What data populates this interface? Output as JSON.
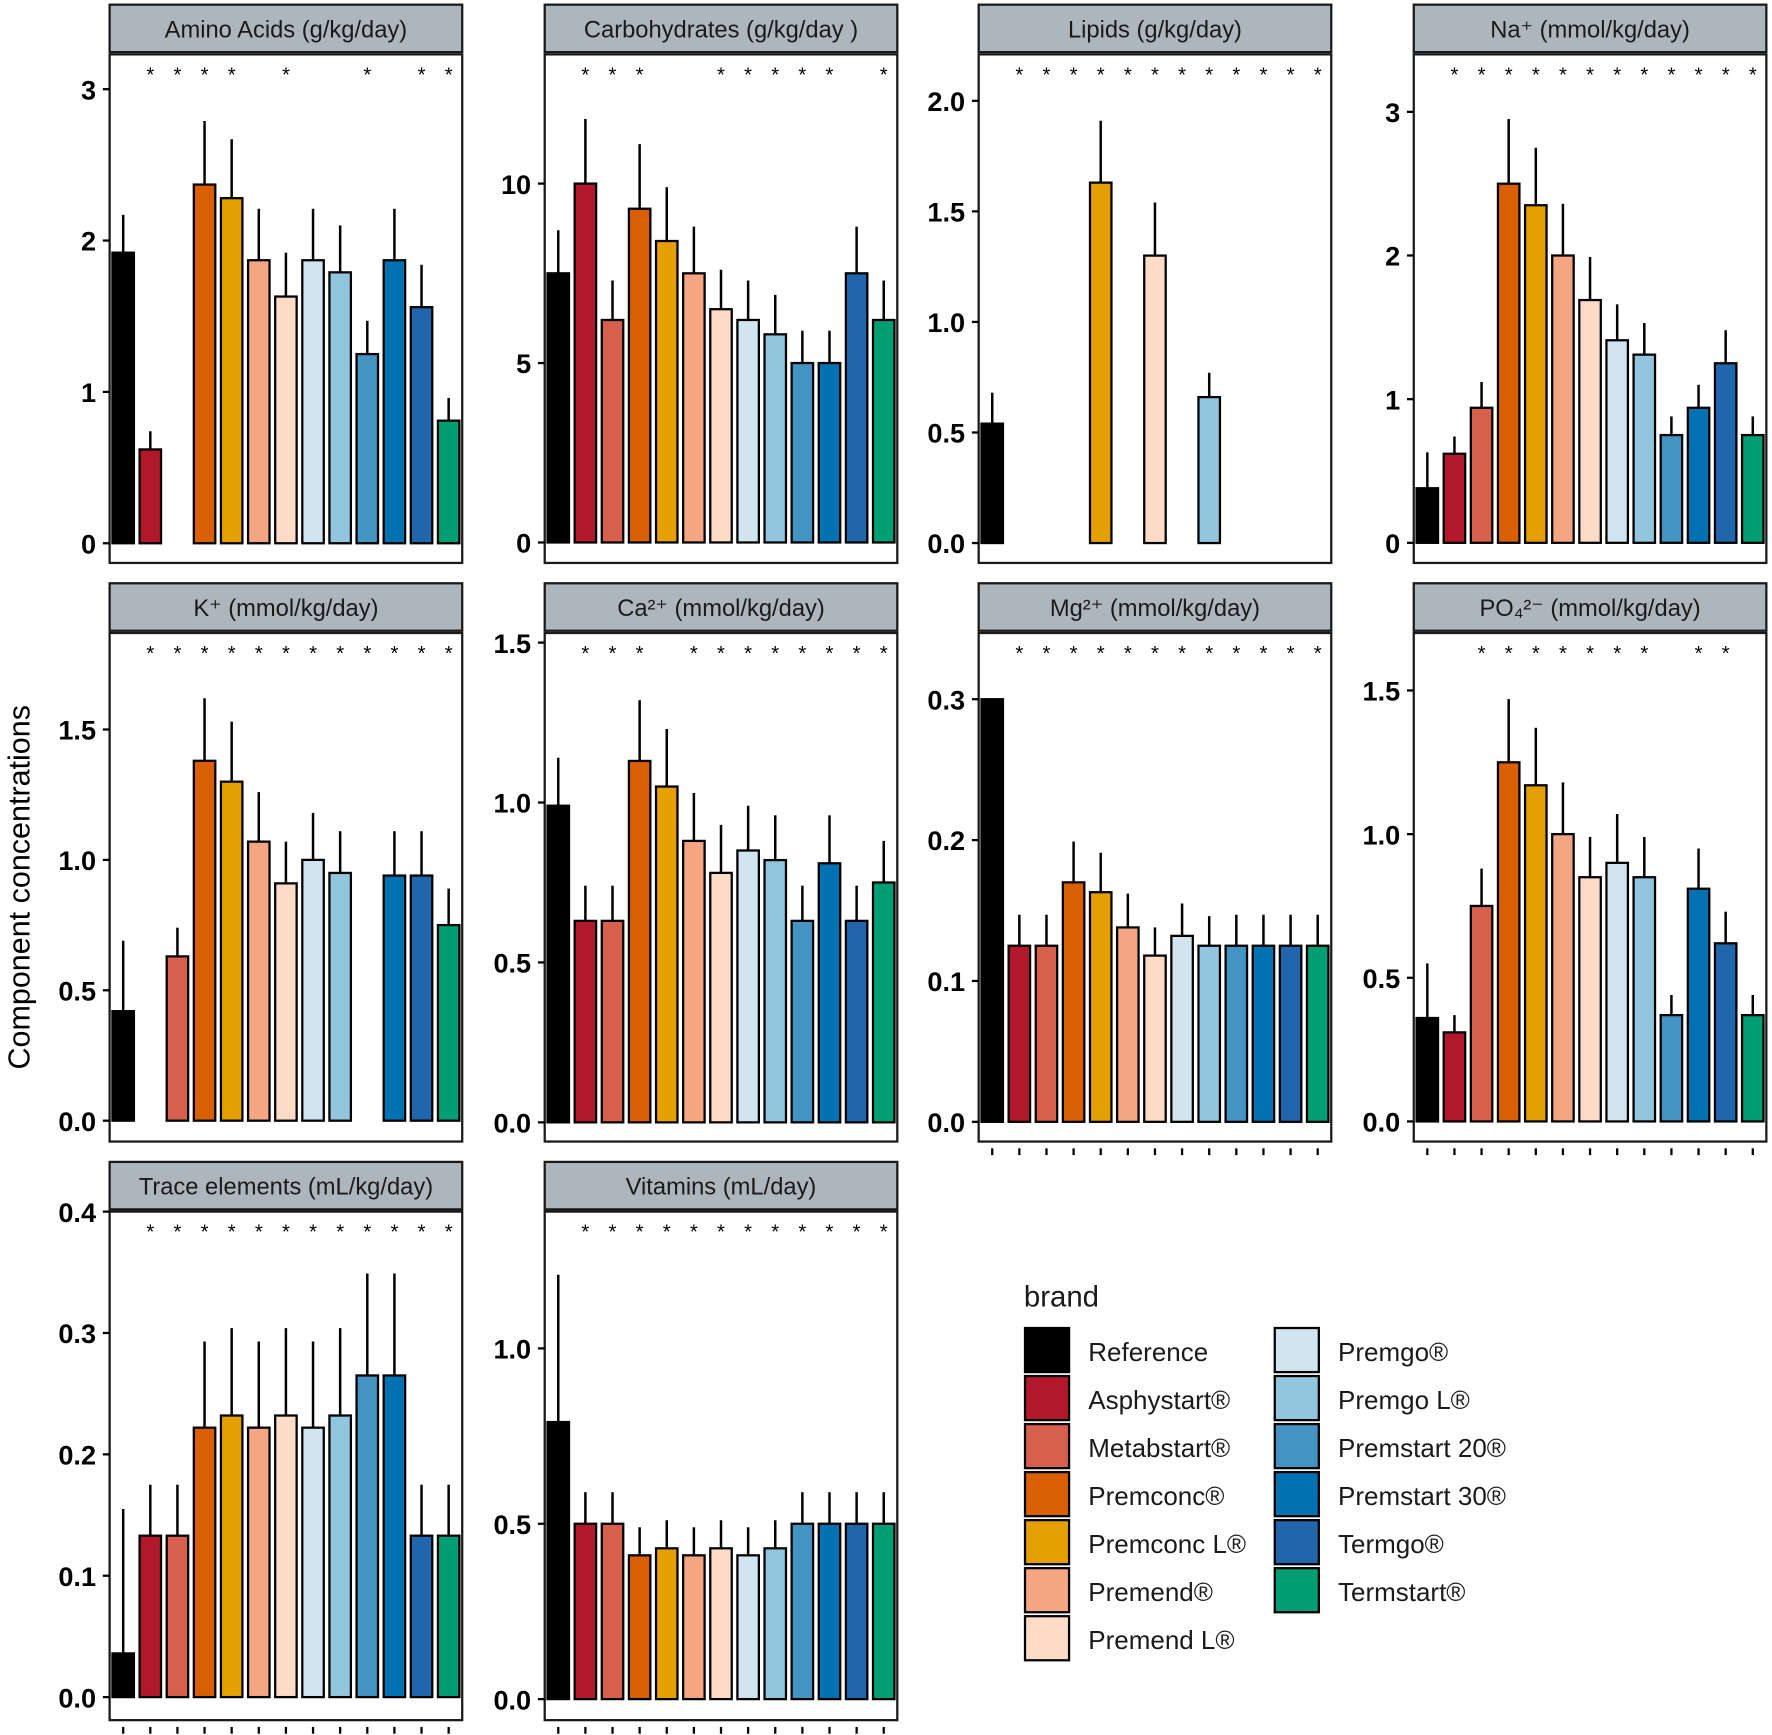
{
  "chart_data": {
    "type": "bar",
    "ylabel": "Component concentrations",
    "legend_title": "brand",
    "legend_placement": "bottom-right",
    "grid": false,
    "categories": [
      "Reference",
      "Asphystart®",
      "Metabstart®",
      "Premconc®",
      "Premconc L®",
      "Premend®",
      "Premend L®",
      "Premgo®",
      "Premgo L®",
      "Premstart 20®",
      "Premstart 30®",
      "Termgo®",
      "Termstart®"
    ],
    "colors": [
      "#000000",
      "#b2182b",
      "#d6604d",
      "#d95f02",
      "#e69f00",
      "#f4a582",
      "#fddbc7",
      "#d1e5f0",
      "#92c5de",
      "#4393c3",
      "#0072b2",
      "#2166ac",
      "#009e73"
    ],
    "panels": [
      {
        "title": "Amino Acids (g/kg/day)",
        "ylim": [
          -0.13,
          3.23
        ],
        "yticks": [
          "0",
          "1",
          "2",
          "3"
        ],
        "ytick_values": [
          0,
          1,
          2,
          3
        ],
        "values": [
          1.92,
          0.62,
          0,
          2.37,
          2.28,
          1.87,
          1.63,
          1.87,
          1.79,
          1.25,
          1.87,
          1.56,
          0.81
        ],
        "error_upper": [
          2.17,
          0.74,
          0,
          2.79,
          2.67,
          2.21,
          1.92,
          2.21,
          2.1,
          1.47,
          2.21,
          1.84,
          0.96
        ],
        "significant": [
          2,
          3,
          4,
          5,
          7,
          10,
          12,
          13
        ]
      },
      {
        "title": "Carbohydrates (g/kg/day )",
        "ylim": [
          -0.57,
          13.6
        ],
        "yticks": [
          "0",
          "5",
          "10"
        ],
        "ytick_values": [
          0,
          5,
          10
        ],
        "values": [
          7.5,
          10.0,
          6.2,
          9.3,
          8.4,
          7.5,
          6.5,
          6.2,
          5.8,
          5.0,
          5.0,
          7.5,
          6.2
        ],
        "error_upper": [
          8.7,
          11.8,
          7.3,
          11.1,
          9.9,
          8.8,
          7.6,
          7.3,
          6.9,
          5.9,
          5.9,
          8.8,
          7.3
        ],
        "significant": [
          2,
          3,
          4,
          7,
          8,
          9,
          10,
          11,
          13
        ]
      },
      {
        "title": "Lipids (g/kg/day)",
        "ylim": [
          -0.09,
          2.21
        ],
        "yticks": [
          "0.0",
          "0.5",
          "1.0",
          "1.5",
          "2.0"
        ],
        "ytick_values": [
          0,
          0.5,
          1,
          1.5,
          2
        ],
        "values": [
          0.54,
          0,
          0,
          0,
          1.63,
          0,
          1.3,
          0,
          0.66,
          0,
          0,
          0,
          0
        ],
        "error_upper": [
          0.68,
          0,
          0,
          0,
          1.91,
          0,
          1.54,
          0,
          0.77,
          0,
          0,
          0,
          0
        ],
        "significant": [
          2,
          3,
          4,
          5,
          6,
          7,
          8,
          9,
          10,
          11,
          12,
          13
        ]
      },
      {
        "title": "Na⁺ (mmol/kg/day)",
        "ylim": [
          -0.14,
          3.4
        ],
        "yticks": [
          "0",
          "1",
          "2",
          "3"
        ],
        "ytick_values": [
          0,
          1,
          2,
          3
        ],
        "values": [
          0.38,
          0.62,
          0.94,
          2.5,
          2.35,
          2.0,
          1.69,
          1.41,
          1.31,
          0.75,
          0.94,
          1.25,
          0.75
        ],
        "error_upper": [
          0.63,
          0.74,
          1.12,
          2.95,
          2.75,
          2.36,
          1.99,
          1.66,
          1.53,
          0.88,
          1.1,
          1.48,
          0.88
        ],
        "significant": [
          2,
          3,
          4,
          5,
          6,
          7,
          8,
          9,
          10,
          11,
          12,
          13
        ]
      },
      {
        "title": "K⁺ (mmol/kg/day)",
        "ylim": [
          -0.08,
          1.87
        ],
        "yticks": [
          "0.0",
          "0.5",
          "1.0",
          "1.5"
        ],
        "ytick_values": [
          0,
          0.5,
          1,
          1.5
        ],
        "values": [
          0.42,
          0,
          0.63,
          1.38,
          1.3,
          1.07,
          0.91,
          1.0,
          0.95,
          0,
          0.94,
          0.94,
          0.75
        ],
        "error_upper": [
          0.69,
          0,
          0.74,
          1.62,
          1.53,
          1.26,
          1.07,
          1.18,
          1.11,
          0,
          1.11,
          1.11,
          0.89
        ],
        "significant": [
          2,
          3,
          4,
          5,
          6,
          7,
          8,
          9,
          10,
          11,
          12,
          13
        ]
      },
      {
        "title": "Ca²⁺ (mmol/kg/day)",
        "ylim": [
          -0.06,
          1.53
        ],
        "yticks": [
          "0.0",
          "0.5",
          "1.0",
          "1.5"
        ],
        "ytick_values": [
          0,
          0.5,
          1,
          1.5
        ],
        "values": [
          0.99,
          0.63,
          0.63,
          1.13,
          1.05,
          0.88,
          0.78,
          0.85,
          0.82,
          0.63,
          0.81,
          0.63,
          0.75
        ],
        "error_upper": [
          1.14,
          0.74,
          0.74,
          1.32,
          1.23,
          1.03,
          0.93,
          0.99,
          0.96,
          0.74,
          0.96,
          0.74,
          0.88
        ],
        "significant": [
          2,
          3,
          4,
          6,
          7,
          8,
          9,
          10,
          11,
          12,
          13
        ]
      },
      {
        "title": "Mg²⁺ (mmol/kg/day)",
        "ylim": [
          -0.014,
          0.347
        ],
        "yticks": [
          "0.0",
          "0.1",
          "0.2",
          "0.3"
        ],
        "ytick_values": [
          0,
          0.1,
          0.2,
          0.3
        ],
        "values": [
          0.3,
          0.125,
          0.125,
          0.17,
          0.163,
          0.138,
          0.118,
          0.132,
          0.125,
          0.125,
          0.125,
          0.125,
          0.125
        ],
        "error_upper": [
          0.3,
          0.147,
          0.147,
          0.199,
          0.191,
          0.162,
          0.138,
          0.155,
          0.146,
          0.147,
          0.147,
          0.147,
          0.147
        ],
        "significant": [
          2,
          3,
          4,
          5,
          6,
          7,
          8,
          9,
          10,
          11,
          12,
          13
        ]
      },
      {
        "title": "PO₄²⁻ (mmol/kg/day)",
        "ylim": [
          -0.07,
          1.7
        ],
        "yticks": [
          "0.0",
          "0.5",
          "1.0",
          "1.5"
        ],
        "ytick_values": [
          0,
          0.5,
          1,
          1.5
        ],
        "values": [
          0.36,
          0.31,
          0.75,
          1.25,
          1.17,
          1.0,
          0.85,
          0.9,
          0.85,
          0.37,
          0.81,
          0.62,
          0.37
        ],
        "error_upper": [
          0.55,
          0.37,
          0.88,
          1.47,
          1.37,
          1.18,
          0.99,
          1.07,
          0.99,
          0.44,
          0.95,
          0.73,
          0.44
        ],
        "significant": [
          3,
          4,
          5,
          6,
          7,
          8,
          9,
          11,
          12
        ]
      },
      {
        "title": "Trace elements (mL/kg/day)",
        "ylim": [
          -0.019,
          0.4
        ],
        "yticks": [
          "0.0",
          "0.1",
          "0.2",
          "0.3",
          "0.4"
        ],
        "ytick_values": [
          0,
          0.1,
          0.2,
          0.3,
          0.4
        ],
        "values": [
          0.036,
          0.133,
          0.133,
          0.222,
          0.232,
          0.222,
          0.232,
          0.222,
          0.232,
          0.265,
          0.265,
          0.133,
          0.133
        ],
        "error_upper": [
          0.155,
          0.175,
          0.175,
          0.293,
          0.304,
          0.293,
          0.304,
          0.293,
          0.304,
          0.349,
          0.349,
          0.175,
          0.175
        ],
        "significant": [
          2,
          3,
          4,
          5,
          6,
          7,
          8,
          9,
          10,
          11,
          12,
          13
        ]
      },
      {
        "title": "Vitamins (mL/day)",
        "ylim": [
          -0.06,
          1.39
        ],
        "yticks": [
          "0.0",
          "0.5",
          "1.0"
        ],
        "ytick_values": [
          0,
          0.5,
          1
        ],
        "values": [
          0.79,
          0.5,
          0.5,
          0.41,
          0.43,
          0.41,
          0.43,
          0.41,
          0.43,
          0.5,
          0.5,
          0.5,
          0.5
        ],
        "error_upper": [
          1.21,
          0.59,
          0.59,
          0.49,
          0.51,
          0.49,
          0.51,
          0.49,
          0.51,
          0.59,
          0.59,
          0.59,
          0.59
        ],
        "significant": [
          2,
          3,
          4,
          5,
          6,
          7,
          8,
          9,
          10,
          11,
          12,
          13
        ]
      }
    ]
  }
}
